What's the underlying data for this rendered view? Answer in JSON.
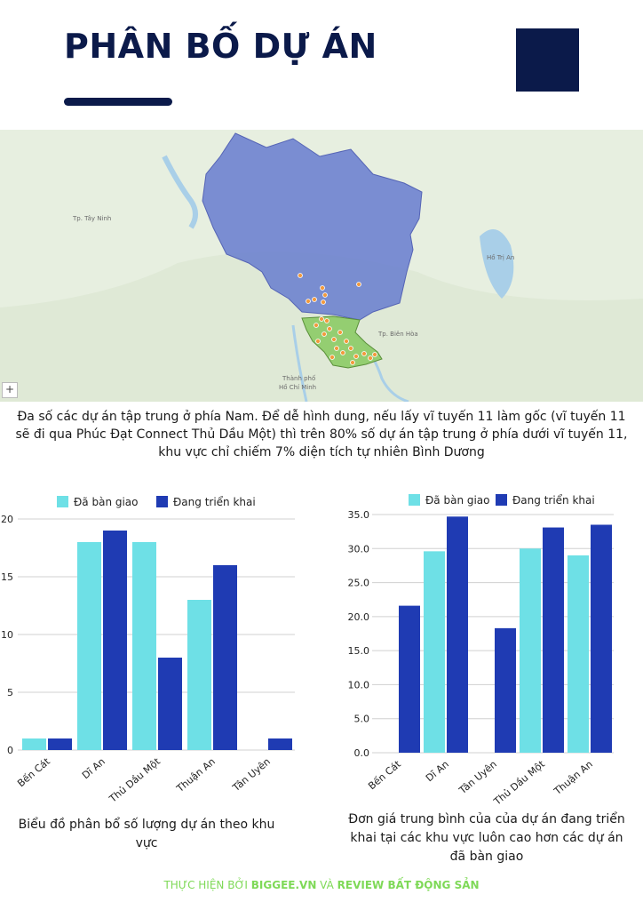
{
  "header": {
    "title": "PHÂN BỐ DỰ ÁN"
  },
  "map": {
    "zoom_symbol": "+",
    "labels": [
      {
        "text": "Tp. Tây Ninh",
        "cls": "l1"
      },
      {
        "text": "Tp. Biên Hòa",
        "cls": "l2"
      },
      {
        "text": "Thành phố",
        "cls": "l3"
      },
      {
        "text": "Hồ Chí Minh",
        "cls": "l4"
      },
      {
        "text": "Hồ Trị An",
        "cls": "l5"
      }
    ]
  },
  "description": "Đa số các dự án tập trung ở phía Nam. Để dễ hình dung, nếu lấy vĩ tuyến 11 làm gốc (vĩ tuyến 11 sẽ đi qua Phúc Đạt Connect Thủ Dầu Một) thì trên 80% số dự án tập trung ở phía dưới vĩ tuyến 11, khu vực chỉ chiếm 7% diện tích tự nhiên Bình Dương",
  "colors": {
    "delivered": "#6ee0e6",
    "deploying": "#1f3bb3",
    "navy": "#0b1a4a",
    "footer_green": "#7ed957"
  },
  "chart_data": [
    {
      "type": "bar",
      "categories": [
        "Bến Cát",
        "Dĩ An",
        "Thủ Dầu Một",
        "Thuận An",
        "Tân Uyên"
      ],
      "series": [
        {
          "name": "Đã bàn giao",
          "values": [
            1,
            18,
            18,
            13,
            0
          ]
        },
        {
          "name": "Đang triển khai",
          "values": [
            1,
            19,
            8,
            16,
            1
          ]
        }
      ],
      "ylim": [
        0,
        20
      ],
      "yticks": [
        "0",
        "5",
        "10",
        "15",
        "20"
      ],
      "legend": "top",
      "grid": true,
      "caption": "Biểu đồ phân bổ số lượng dự án theo khu vực"
    },
    {
      "type": "bar",
      "categories": [
        "Bến Cát",
        "Dĩ An",
        "Tân Uyên",
        "Thủ Dầu Một",
        "Thuận An"
      ],
      "series": [
        {
          "name": "Đã bàn giao",
          "values": [
            0,
            29.6,
            0,
            30,
            29
          ]
        },
        {
          "name": "Đang triển khai",
          "values": [
            21.6,
            34.7,
            18.3,
            33.1,
            33.5
          ]
        }
      ],
      "ylim": [
        0,
        35
      ],
      "yticks": [
        "0.0",
        "5.0",
        "10.0",
        "15.0",
        "20.0",
        "25.0",
        "30.0",
        "35.0"
      ],
      "legend": "top",
      "grid": true,
      "caption": "Đơn giá trung bình của của dự án đang triển khai tại các khu vực luôn cao hơn các dự án đã bàn giao"
    }
  ],
  "footer": {
    "prefix": "THỰC HIỆN BỞI ",
    "brand1": "BIGGEE.VN",
    "middle": " VÀ ",
    "brand2": "REVIEW BẤT ĐỘNG SẢN"
  }
}
